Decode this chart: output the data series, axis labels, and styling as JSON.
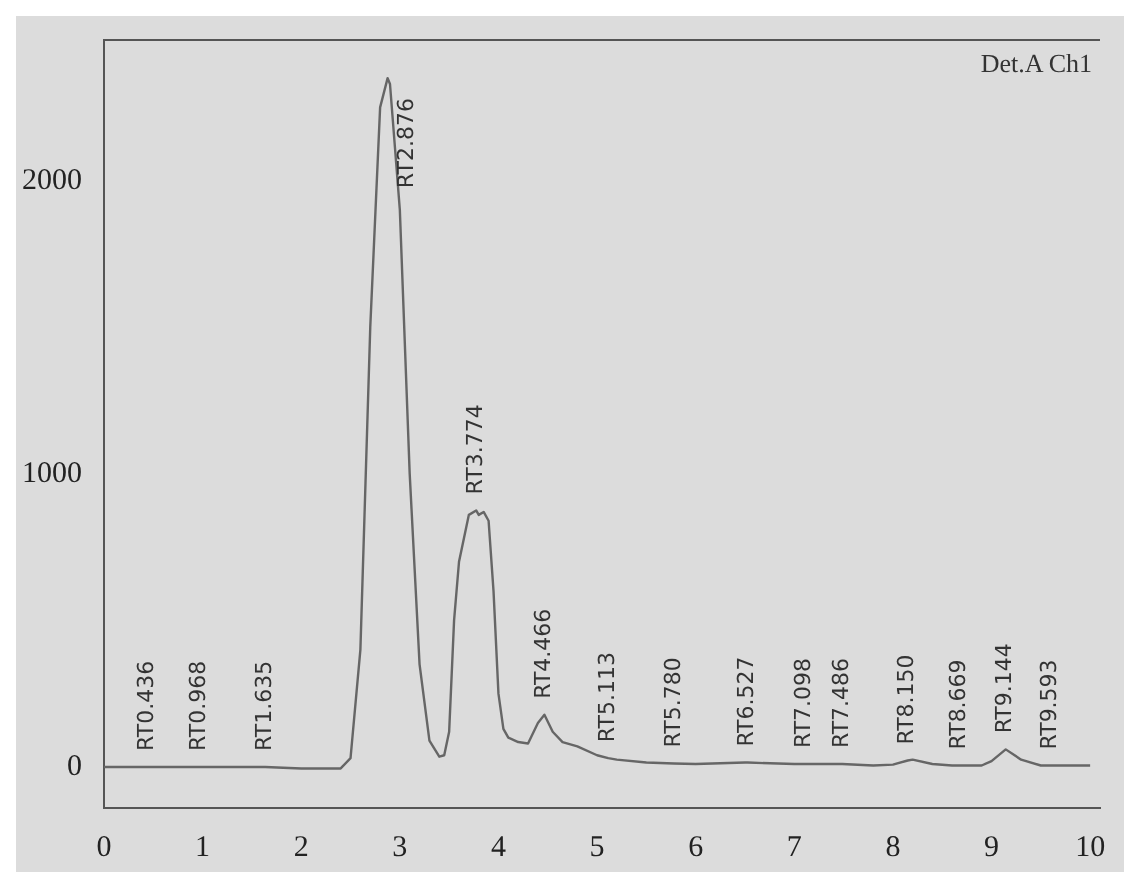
{
  "chart_data": {
    "type": "line",
    "x": [
      0,
      0.436,
      0.5,
      0.968,
      1,
      1.5,
      1.635,
      2,
      2.4,
      2.5,
      2.6,
      2.7,
      2.8,
      2.876,
      2.9,
      3.0,
      3.1,
      3.2,
      3.3,
      3.4,
      3.45,
      3.5,
      3.55,
      3.6,
      3.7,
      3.774,
      3.8,
      3.85,
      3.9,
      3.95,
      4.0,
      4.05,
      4.1,
      4.2,
      4.3,
      4.4,
      4.466,
      4.55,
      4.65,
      4.8,
      5.0,
      5.113,
      5.2,
      5.5,
      5.78,
      6.0,
      6.5,
      6.527,
      7.0,
      7.098,
      7.486,
      7.5,
      7.8,
      8.0,
      8.15,
      8.2,
      8.4,
      8.6,
      8.669,
      8.9,
      9.0,
      9.144,
      9.3,
      9.5,
      9.593,
      10
    ],
    "series": [
      {
        "color": "#666666",
        "values": [
          0,
          0,
          0,
          0,
          0,
          0,
          0,
          -5,
          -5,
          30,
          400,
          1500,
          2250,
          2350,
          2330,
          1900,
          1000,
          350,
          90,
          35,
          40,
          120,
          500,
          700,
          860,
          875,
          860,
          870,
          840,
          600,
          250,
          130,
          100,
          85,
          80,
          150,
          178,
          120,
          85,
          70,
          40,
          30,
          25,
          15,
          12,
          10,
          15,
          15,
          10,
          10,
          10,
          10,
          5,
          8,
          22,
          25,
          10,
          5,
          5,
          5,
          20,
          60,
          25,
          5,
          5,
          5
        ]
      }
    ],
    "xlim": [
      0,
      10.1
    ],
    "ylim": [
      -140,
      2480
    ],
    "xticks": [
      0,
      1,
      2,
      3,
      4,
      5,
      6,
      7,
      8,
      9,
      10
    ],
    "yticks": [
      0,
      1000,
      2000
    ],
    "grid": false,
    "legend": false,
    "marker": "none",
    "line_style": "solid",
    "annotations": [
      "Det.A Ch1",
      {
        "text": "RT0.436",
        "x": 0.436,
        "y": 0
      },
      {
        "text": "RT0.968",
        "x": 0.968,
        "y": 0
      },
      {
        "text": "RT1.635",
        "x": 1.635,
        "y": 0
      },
      {
        "text": "RT2.876",
        "x": 2.876,
        "y": 2350
      },
      {
        "text": "RT3.774",
        "x": 3.774,
        "y": 875
      },
      {
        "text": "RT4.466",
        "x": 4.466,
        "y": 178
      },
      {
        "text": "RT5.113",
        "x": 5.113,
        "y": 30
      },
      {
        "text": "RT5.780",
        "x": 5.78,
        "y": 12
      },
      {
        "text": "RT6.527",
        "x": 6.527,
        "y": 15
      },
      {
        "text": "RT7.098",
        "x": 7.098,
        "y": 10
      },
      {
        "text": "RT7.486",
        "x": 7.486,
        "y": 10
      },
      {
        "text": "RT8.150",
        "x": 8.15,
        "y": 22
      },
      {
        "text": "RT8.669",
        "x": 8.669,
        "y": 5
      },
      {
        "text": "RT9.144",
        "x": 9.144,
        "y": 60
      },
      {
        "text": "RT9.593",
        "x": 9.593,
        "y": 5
      }
    ]
  }
}
